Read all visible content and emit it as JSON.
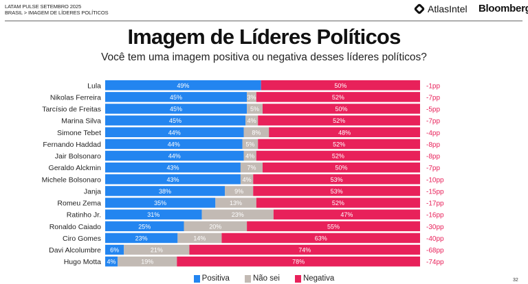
{
  "header": {
    "line1": "LATAM PULSE SETEMBRO 2025",
    "line2": "BRASIL > IMAGEM DE LÍDERES POLÍTICOS",
    "logo_atlas": "AtlasIntel",
    "logo_bloomberg": "Bloomberg"
  },
  "page_number": "32",
  "chart_data": {
    "type": "bar",
    "orientation": "horizontal",
    "stacked": true,
    "title": "Imagem de Líderes Políticos",
    "subtitle": "Você tem uma imagem positiva ou negativa desses líderes políticos?",
    "legend_position": "bottom",
    "categories": [
      "Lula",
      "Nikolas Ferreira",
      "Tarcísio de Freitas",
      "Marina Silva",
      "Simone Tebet",
      "Fernando Haddad",
      "Jair Bolsonaro",
      "Geraldo Alckmin",
      "Michele Bolsonaro",
      "Janja",
      "Romeu Zema",
      "Ratinho Jr.",
      "Ronaldo Caiado",
      "Ciro Gomes",
      "Davi Alcolumbre",
      "Hugo Motta"
    ],
    "series": [
      {
        "name": "Positiva",
        "color": "#2385f0",
        "values": [
          49,
          45,
          45,
          45,
          44,
          44,
          44,
          43,
          43,
          38,
          35,
          31,
          25,
          23,
          6,
          4
        ]
      },
      {
        "name": "Não sei",
        "color": "#c2bab4",
        "values": [
          null,
          3,
          5,
          4,
          8,
          5,
          4,
          7,
          4,
          9,
          13,
          23,
          20,
          14,
          21,
          19
        ]
      },
      {
        "name": "Negativa",
        "color": "#e8215a",
        "values": [
          50,
          52,
          50,
          52,
          48,
          52,
          52,
          50,
          53,
          53,
          52,
          47,
          55,
          63,
          74,
          78
        ]
      }
    ],
    "net_labels": [
      "-1pp",
      "-7pp",
      "-5pp",
      "-7pp",
      "-4pp",
      "-8pp",
      "-8pp",
      "-7pp",
      "-10pp",
      "-15pp",
      "-17pp",
      "-16pp",
      "-30pp",
      "-40pp",
      "-68pp",
      "-74pp"
    ],
    "net_color": "#e8215a",
    "value_suffix": "%"
  }
}
